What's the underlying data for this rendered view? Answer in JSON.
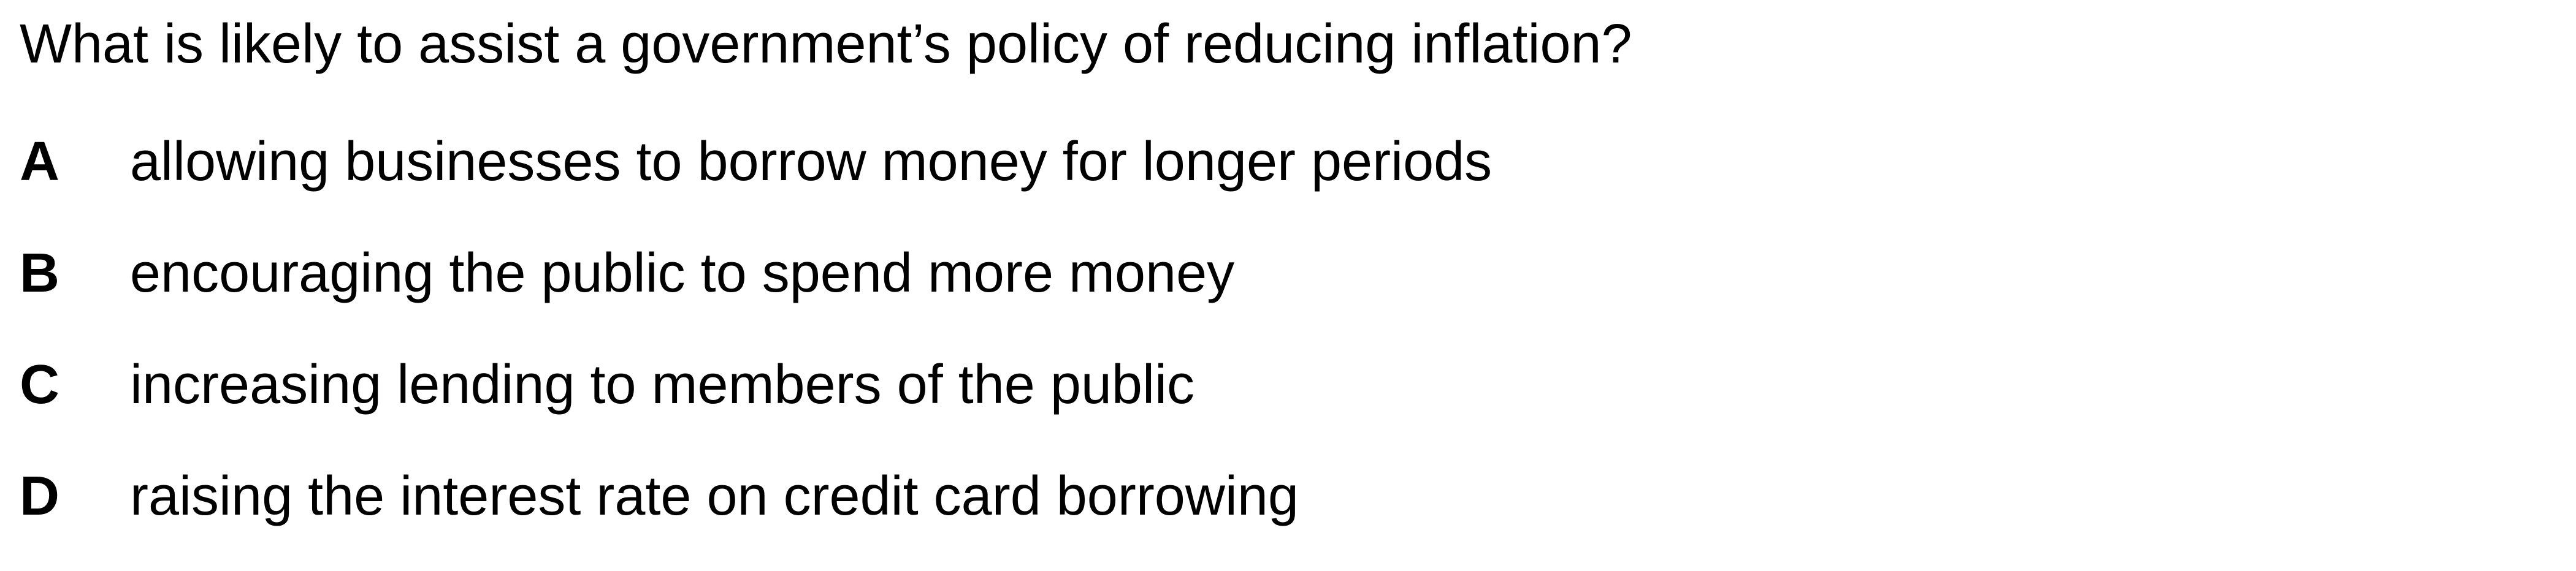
{
  "question": {
    "text": "What is likely to assist a government’s policy of reducing inflation?"
  },
  "options": [
    {
      "letter": "A",
      "text": "allowing businesses to borrow money for longer periods"
    },
    {
      "letter": "B",
      "text": "encouraging the public to spend more money"
    },
    {
      "letter": "C",
      "text": "increasing lending to members of the public"
    },
    {
      "letter": "D",
      "text": "raising the interest rate on credit card borrowing"
    }
  ]
}
